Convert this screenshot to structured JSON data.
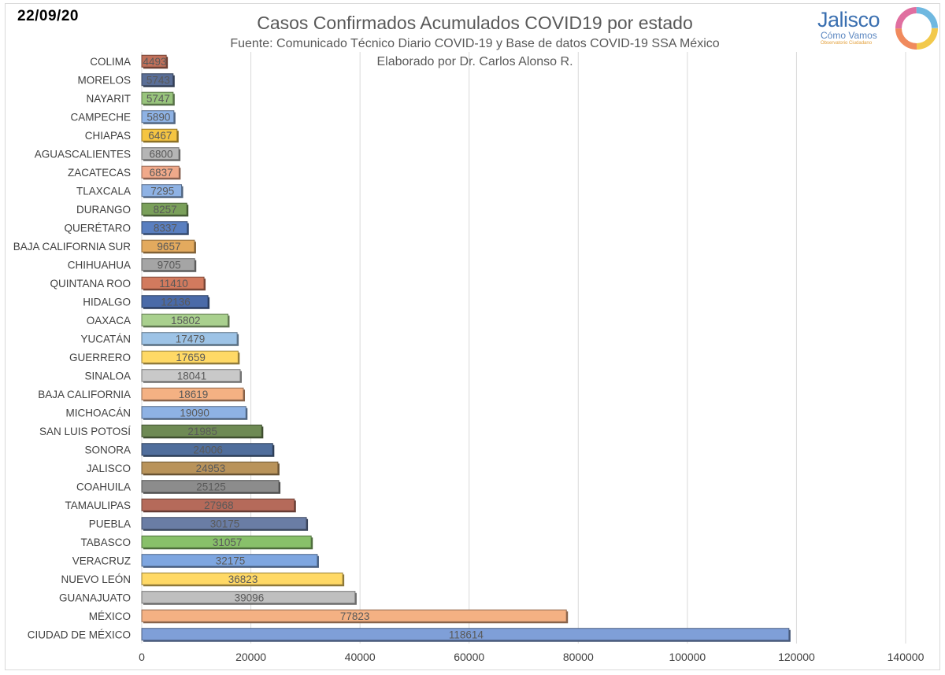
{
  "header": {
    "date": "22/09/20",
    "logo_brand": "Jalisco",
    "logo_tagline": "Cómo Vamos",
    "logo_small": "Observatorio Ciudadano"
  },
  "colors": {
    "grid": "#d9d9d9",
    "axis_text": "#404040",
    "label_text": "#595959"
  },
  "chart_data": {
    "type": "bar",
    "orientation": "horizontal",
    "title": "Casos Confirmados Acumulados COVID19 por estado",
    "subtitle": "Fuente: Comunicado Técnico Diario COVID-19 y Base de datos COVID-19 SSA México",
    "subtitle2": "Elaborado por Dr. Carlos Alonso R.",
    "xlabel": "",
    "ylabel": "",
    "xlim": [
      0,
      140000
    ],
    "xticks": [
      0,
      20000,
      40000,
      60000,
      80000,
      100000,
      120000,
      140000
    ],
    "grid": true,
    "categories": [
      "COLIMA",
      "MORELOS",
      "NAYARIT",
      "CAMPECHE",
      "CHIAPAS",
      "AGUASCALIENTES",
      "ZACATECAS",
      "TLAXCALA",
      "DURANGO",
      "QUERÉTARO",
      "BAJA CALIFORNIA SUR",
      "CHIHUAHUA",
      "QUINTANA ROO",
      "HIDALGO",
      "OAXACA",
      "YUCATÁN",
      "GUERRERO",
      "SINALOA",
      "BAJA CALIFORNIA",
      "MICHOACÁN",
      "SAN LUIS POTOSÍ",
      "SONORA",
      "JALISCO",
      "COAHUILA",
      "TAMAULIPAS",
      "PUEBLA",
      "TABASCO",
      "VERACRUZ",
      "NUEVO LEÓN",
      "GUANAJUATO",
      "MÉXICO",
      "CIUDAD DE MÉXICO"
    ],
    "values": [
      4493,
      5743,
      5747,
      5890,
      6467,
      6800,
      6837,
      7295,
      8257,
      8337,
      9657,
      9705,
      11410,
      12136,
      15802,
      17479,
      17659,
      18041,
      18619,
      19090,
      21985,
      24006,
      24953,
      25125,
      27968,
      30175,
      31057,
      32175,
      36823,
      39096,
      77823,
      118614
    ],
    "bar_colors": [
      "#c0705a",
      "#5a6e96",
      "#98c47c",
      "#8eb2e4",
      "#f5c542",
      "#b5b5b5",
      "#f0a98a",
      "#8eb2e4",
      "#7aa05a",
      "#5a7fc0",
      "#e3aa5e",
      "#a5a5a5",
      "#d27a5e",
      "#4a6aa8",
      "#a9d08e",
      "#9dc3e6",
      "#ffd966",
      "#c9c9c9",
      "#f4b183",
      "#8eb2e4",
      "#6e8a54",
      "#506e9c",
      "#b9935a",
      "#8c8c8c",
      "#b56a5a",
      "#6a7da5",
      "#88c06a",
      "#7ea6e0",
      "#ffd966",
      "#bfbfbf",
      "#f4b183",
      "#7f9fd8"
    ]
  }
}
